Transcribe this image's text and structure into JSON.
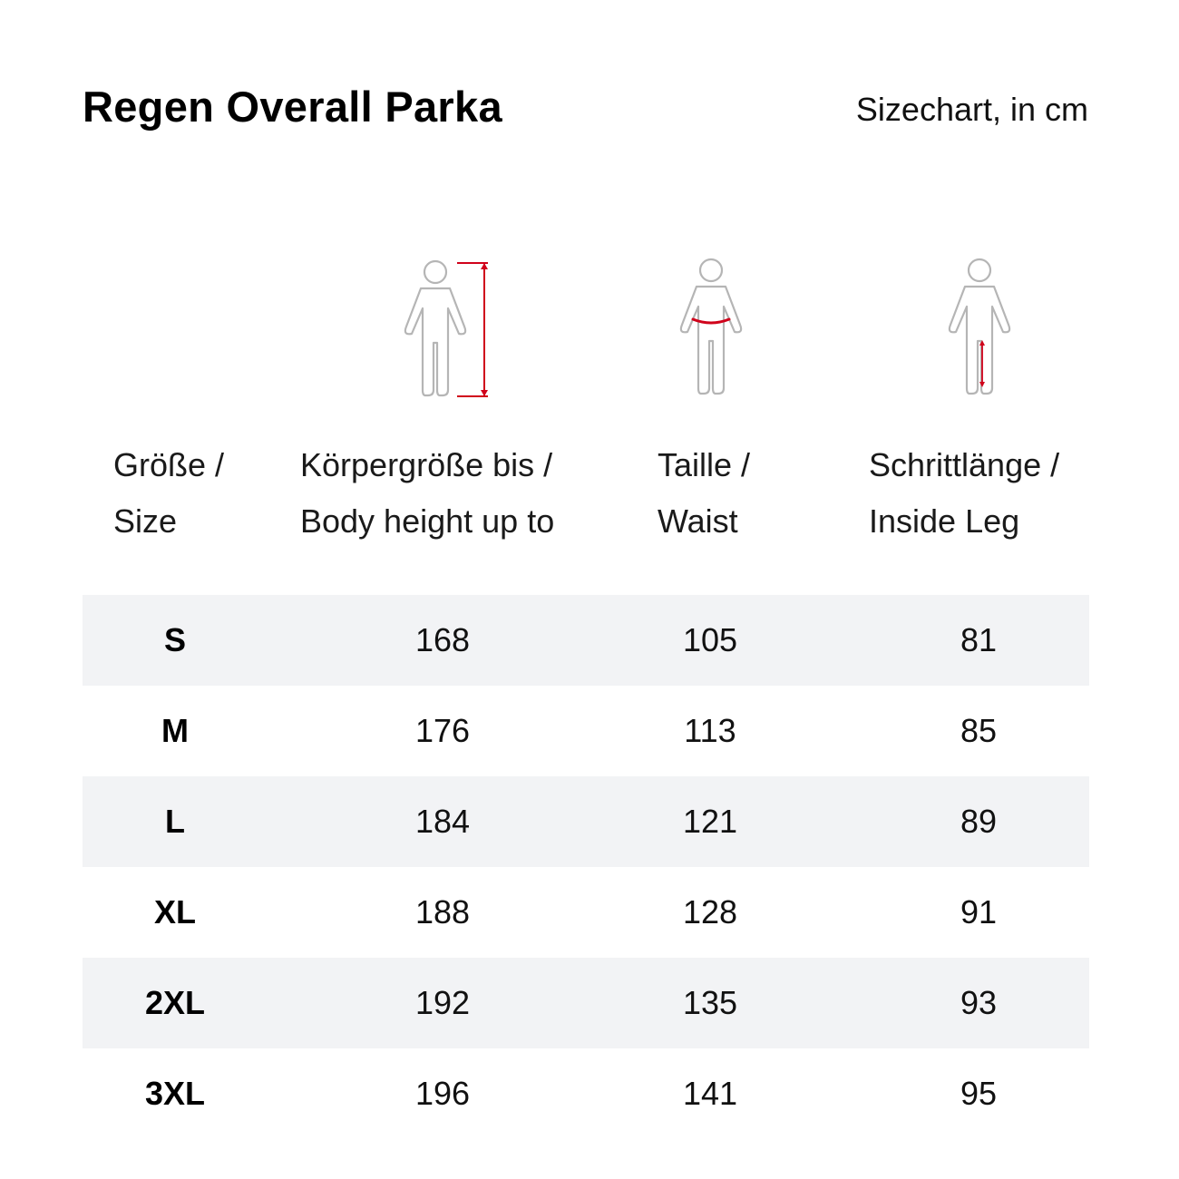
{
  "header": {
    "title": "Regen Overall Parka",
    "subtitle": "Sizechart, in cm"
  },
  "colors": {
    "accent": "#d0021b",
    "figure": "#b5b5b5",
    "row_shade": "#f2f3f5"
  },
  "icons": {
    "height": "body-height-figure-icon",
    "waist": "waist-figure-icon",
    "leg": "inside-leg-figure-icon"
  },
  "columns": {
    "size": {
      "line1": "Größe /",
      "line2": "Size"
    },
    "height": {
      "line1": "Körpergröße bis /",
      "line2": "Body height up to"
    },
    "waist": {
      "line1": "Taille /",
      "line2": "Waist"
    },
    "leg": {
      "line1": "Schrittlänge /",
      "line2": "Inside Leg"
    }
  },
  "rows": [
    {
      "size": "S",
      "height": "168",
      "waist": "105",
      "leg": "81"
    },
    {
      "size": "M",
      "height": "176",
      "waist": "113",
      "leg": "85"
    },
    {
      "size": "L",
      "height": "184",
      "waist": "121",
      "leg": "89"
    },
    {
      "size": "XL",
      "height": "188",
      "waist": "128",
      "leg": "91"
    },
    {
      "size": "2XL",
      "height": "192",
      "waist": "135",
      "leg": "93"
    },
    {
      "size": "3XL",
      "height": "196",
      "waist": "141",
      "leg": "95"
    }
  ]
}
